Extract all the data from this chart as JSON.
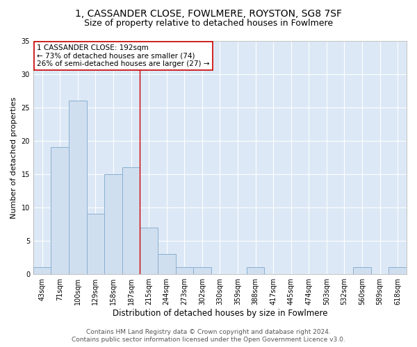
{
  "title1": "1, CASSANDER CLOSE, FOWLMERE, ROYSTON, SG8 7SF",
  "title2": "Size of property relative to detached houses in Fowlmere",
  "xlabel": "Distribution of detached houses by size in Fowlmere",
  "ylabel": "Number of detached properties",
  "bar_labels": [
    "43sqm",
    "71sqm",
    "100sqm",
    "129sqm",
    "158sqm",
    "187sqm",
    "215sqm",
    "244sqm",
    "273sqm",
    "302sqm",
    "330sqm",
    "359sqm",
    "388sqm",
    "417sqm",
    "445sqm",
    "474sqm",
    "503sqm",
    "532sqm",
    "560sqm",
    "589sqm",
    "618sqm"
  ],
  "bar_values": [
    1,
    19,
    26,
    9,
    15,
    16,
    7,
    3,
    1,
    1,
    0,
    0,
    1,
    0,
    0,
    0,
    0,
    0,
    1,
    0,
    1
  ],
  "bar_color": "#d0dff0",
  "bar_edgecolor": "#8ab0d0",
  "annotation_text_line1": "1 CASSANDER CLOSE: 192sqm",
  "annotation_text_line2": "← 73% of detached houses are smaller (74)",
  "annotation_text_line3": "26% of semi-detached houses are larger (27) →",
  "annotation_box_facecolor": "#ffffff",
  "annotation_box_edgecolor": "#cc0000",
  "vline_color": "#cc0000",
  "vline_x": 5.5,
  "ylim": [
    0,
    35
  ],
  "yticks": [
    0,
    5,
    10,
    15,
    20,
    25,
    30,
    35
  ],
  "footer1": "Contains HM Land Registry data © Crown copyright and database right 2024.",
  "footer2": "Contains public sector information licensed under the Open Government Licence v3.0.",
  "fig_facecolor": "#ffffff",
  "plot_facecolor": "#dce8f5",
  "title1_fontsize": 10,
  "title2_fontsize": 9,
  "xlabel_fontsize": 8.5,
  "ylabel_fontsize": 8,
  "tick_fontsize": 7,
  "footer_fontsize": 6.5,
  "annotation_fontsize": 7.5,
  "grid_color": "#ffffff",
  "spine_color": "#aaaaaa"
}
